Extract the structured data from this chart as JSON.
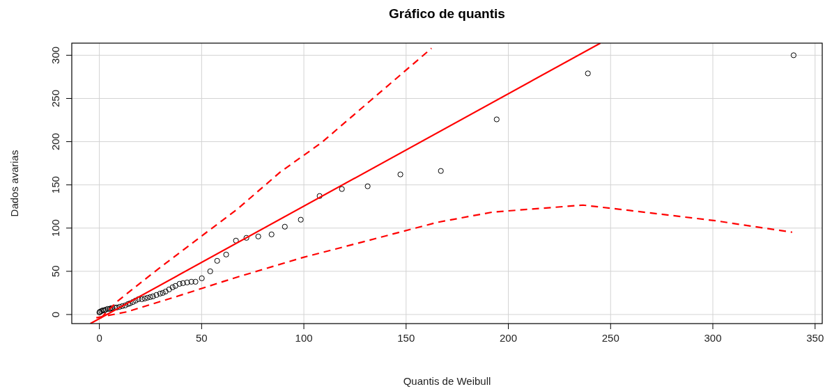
{
  "chart_data": {
    "type": "scatter",
    "title": "Gráfico de quantis",
    "xlabel": "Quantis de Weibull",
    "ylabel": "Dados avarias",
    "xlim": [
      -13.5,
      353.5
    ],
    "ylim": [
      -10.5,
      314
    ],
    "xticks": [
      0,
      50,
      100,
      150,
      200,
      250,
      300,
      350
    ],
    "yticks": [
      0,
      50,
      100,
      150,
      200,
      250,
      300
    ],
    "grid": true,
    "series": [
      {
        "color": "#000000",
        "marker": "circle",
        "x": [
          0,
          0.3,
          1.0,
          1.7,
          2.4,
          3.1,
          4.1,
          5.1,
          5.8,
          6.5,
          7.5,
          8.5,
          9.9,
          11.2,
          12.6,
          14.0,
          15.0,
          16.4,
          17.7,
          19.1,
          20.8,
          22.2,
          23.5,
          24.9,
          26.2,
          27.9,
          29.7,
          31.0,
          32.4,
          34.1,
          35.8,
          37.2,
          39.2,
          40.9,
          42.9,
          45,
          47,
          50.1,
          54.2,
          57.6,
          62,
          66.8,
          71.9,
          77.7,
          84.2,
          90.7,
          98.5,
          107.7,
          118.6,
          131.2,
          147.2,
          167,
          194.3,
          238.9,
          339.5
        ],
        "values": [
          2.4,
          3.2,
          4.0,
          4.8,
          4.8,
          5.6,
          6.5,
          6.5,
          7.3,
          7.3,
          8.1,
          8.1,
          8.9,
          9.7,
          10.5,
          12.1,
          12.9,
          14.5,
          16.1,
          17.7,
          17.7,
          18.5,
          19.4,
          20.2,
          21,
          22.6,
          24.2,
          25,
          26.6,
          29,
          31.5,
          33.1,
          35.5,
          36.3,
          37.1,
          37.9,
          37.9,
          41.9,
          50,
          62.1,
          69.4,
          85.5,
          88.7,
          90.3,
          92.7,
          101.6,
          109.7,
          137.1,
          145.2,
          148.4,
          162.1,
          166.1,
          225.8,
          279,
          300
        ]
      },
      {
        "type": "line",
        "color": "#ff0000",
        "line_style": "solid",
        "x": [
          -4.4,
          245
        ],
        "values": [
          -10.5,
          314
        ]
      },
      {
        "type": "line",
        "color": "#ff0000",
        "line_style": "dashed",
        "x": [
          0.7,
          8.8,
          25.8,
          49.7,
          67.8,
          88.5,
          108.7,
          132.6,
          162.4
        ],
        "values": [
          -4,
          15.3,
          47.3,
          90.3,
          122.6,
          164.9,
          199,
          247.6,
          308
        ]
      },
      {
        "type": "line",
        "color": "#ff0000",
        "line_style": "dashed",
        "x": [
          -1.5,
          13.3,
          37.2,
          65.5,
          99.7,
          126.9,
          165,
          192.2,
          236.5,
          258.7,
          301.3,
          338.8
        ],
        "values": [
          -3.8,
          3,
          20.4,
          41.9,
          66.1,
          82.8,
          106.5,
          118.5,
          126.6,
          120.6,
          108.5,
          95.2
        ]
      }
    ]
  }
}
